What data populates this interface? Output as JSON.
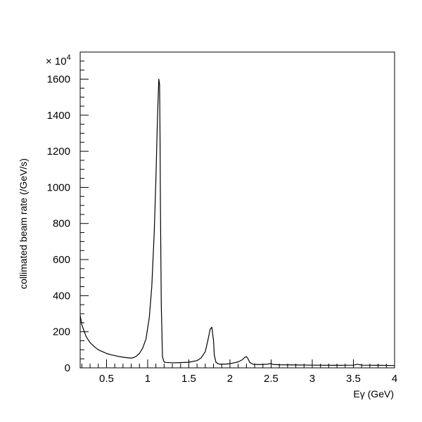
{
  "chart_data": {
    "type": "line",
    "title": "",
    "xlabel": "Eγ (GeV)",
    "ylabel": "collimated beam rate (/GeV/s)",
    "y_multiplier": "× 10",
    "y_multiplier_exponent": "4",
    "xlim": [
      0.18,
      4.0
    ],
    "ylim": [
      0,
      1750
    ],
    "x_ticks": [
      0.5,
      1,
      1.5,
      2,
      2.5,
      3,
      3.5,
      4
    ],
    "x_tick_labels": [
      "0.5",
      "1",
      "1.5",
      "2",
      "2.5",
      "3",
      "3.5",
      "4"
    ],
    "y_ticks": [
      0,
      200,
      400,
      600,
      800,
      1000,
      1200,
      1400,
      1600
    ],
    "y_tick_labels": [
      "0",
      "200",
      "400",
      "600",
      "800",
      "1000",
      "1200",
      "1400",
      "1600"
    ],
    "grid": false,
    "legend": "none",
    "line_color": "#000000",
    "series": [
      {
        "x": [
          0.18,
          0.2,
          0.25,
          0.3,
          0.35,
          0.4,
          0.45,
          0.5,
          0.55,
          0.6,
          0.65,
          0.7,
          0.75,
          0.8,
          0.83,
          0.86,
          0.9,
          0.94,
          0.98,
          1.02,
          1.05,
          1.08,
          1.1,
          1.12,
          1.135,
          1.145,
          1.15,
          1.155,
          1.165,
          1.18,
          1.2,
          1.22,
          1.3,
          1.4,
          1.5,
          1.6,
          1.65,
          1.7,
          1.73,
          1.76,
          1.78,
          1.8,
          1.81,
          1.83,
          1.86,
          1.9,
          1.95,
          2.0,
          2.05,
          2.1,
          2.15,
          2.18,
          2.2,
          2.22,
          2.24,
          2.28,
          2.35,
          2.45,
          2.5,
          2.52,
          2.6,
          2.8,
          3.0,
          3.3,
          3.5,
          3.55,
          3.6,
          3.8,
          4.0
        ],
        "y": [
          290,
          240,
          175,
          140,
          118,
          100,
          90,
          80,
          73,
          68,
          63,
          59,
          56,
          54,
          57,
          64,
          80,
          110,
          160,
          280,
          450,
          750,
          1050,
          1400,
          1600,
          1570,
          1300,
          900,
          350,
          60,
          32,
          30,
          28,
          29,
          31,
          40,
          55,
          90,
          150,
          215,
          225,
          150,
          70,
          30,
          22,
          20,
          21,
          23,
          28,
          33,
          45,
          58,
          62,
          50,
          30,
          20,
          18,
          20,
          24,
          19,
          17,
          16,
          15,
          14,
          15,
          20,
          15,
          14,
          13
        ]
      }
    ]
  }
}
